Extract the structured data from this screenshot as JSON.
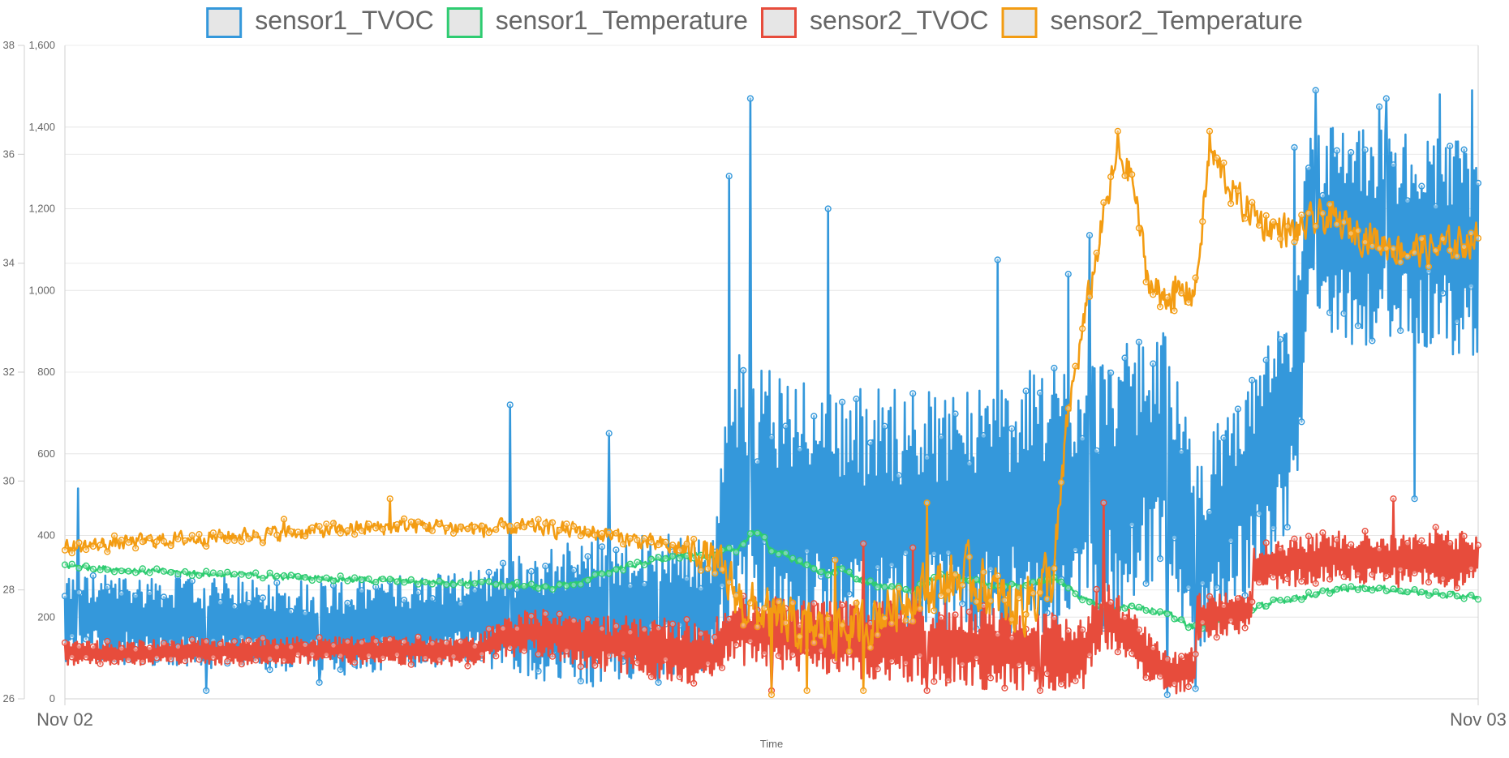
{
  "chart_data": {
    "type": "line",
    "x_axis": {
      "title": "Time",
      "tick_labels": [
        "Nov 02",
        "Nov 03"
      ]
    },
    "y_axes": {
      "left_outer": {
        "ticks": [
          26,
          28,
          30,
          32,
          34,
          36,
          38
        ],
        "range": [
          26,
          38
        ]
      },
      "left_inner": {
        "ticks": [
          "0",
          "200",
          "400",
          "600",
          "800",
          "1,000",
          "1,200",
          "1,400",
          "1,600"
        ],
        "range": [
          0,
          1600
        ]
      }
    },
    "grid": true,
    "legend_position": "top",
    "series": [
      {
        "name": "sensor1_TVOC",
        "axis": "left_inner",
        "color": "#3498db",
        "profile": [
          [
            0,
            200
          ],
          [
            0.2,
            175
          ],
          [
            0.29,
            200
          ],
          [
            0.37,
            210
          ],
          [
            0.43,
            230
          ],
          [
            0.46,
            220
          ],
          [
            0.47,
            500
          ],
          [
            0.55,
            430
          ],
          [
            0.64,
            450
          ],
          [
            0.72,
            480
          ],
          [
            0.78,
            610
          ],
          [
            0.8,
            330
          ],
          [
            0.87,
            700
          ],
          [
            0.88,
            1150
          ],
          [
            1,
            1100
          ]
        ],
        "noise": [
          [
            0,
            90
          ],
          [
            0.29,
            100
          ],
          [
            0.37,
            160
          ],
          [
            0.46,
            140
          ],
          [
            0.47,
            300
          ],
          [
            0.64,
            260
          ],
          [
            0.72,
            300
          ],
          [
            0.8,
            220
          ],
          [
            0.87,
            220
          ],
          [
            0.88,
            230
          ],
          [
            1,
            220
          ]
        ],
        "peaks": [
          [
            0.009,
            515
          ],
          [
            0.315,
            720
          ],
          [
            0.385,
            650
          ],
          [
            0.47,
            1280
          ],
          [
            0.485,
            1470
          ],
          [
            0.54,
            1200
          ],
          [
            0.66,
            1075
          ],
          [
            0.71,
            1040
          ],
          [
            0.725,
            1135
          ],
          [
            0.8,
            410
          ],
          [
            0.87,
            1350
          ],
          [
            0.885,
            1490
          ],
          [
            0.93,
            1450
          ],
          [
            0.935,
            1470
          ],
          [
            0.955,
            1520
          ],
          [
            0.973,
            1480
          ],
          [
            0.996,
            1490
          ]
        ],
        "troughs": [
          [
            0.1,
            20
          ],
          [
            0.18,
            40
          ],
          [
            0.42,
            40
          ],
          [
            0.78,
            10
          ],
          [
            0.8,
            25
          ],
          [
            0.955,
            730
          ],
          [
            0.955,
            490
          ]
        ]
      },
      {
        "name": "sensor1_Temperature",
        "axis": "left_outer",
        "color": "#2ecc71",
        "profile": [
          [
            0,
            28.45
          ],
          [
            0.05,
            28.35
          ],
          [
            0.1,
            28.3
          ],
          [
            0.15,
            28.25
          ],
          [
            0.2,
            28.2
          ],
          [
            0.25,
            28.15
          ],
          [
            0.3,
            28.12
          ],
          [
            0.34,
            28.05
          ],
          [
            0.36,
            28.1
          ],
          [
            0.38,
            28.3
          ],
          [
            0.4,
            28.45
          ],
          [
            0.43,
            28.6
          ],
          [
            0.46,
            28.65
          ],
          [
            0.475,
            28.75
          ],
          [
            0.49,
            29.1
          ],
          [
            0.5,
            28.75
          ],
          [
            0.52,
            28.5
          ],
          [
            0.54,
            28.3
          ],
          [
            0.55,
            28.4
          ],
          [
            0.56,
            28.2
          ],
          [
            0.58,
            28.05
          ],
          [
            0.6,
            28.0
          ],
          [
            0.62,
            28.25
          ],
          [
            0.64,
            28.2
          ],
          [
            0.66,
            28.05
          ],
          [
            0.68,
            28.1
          ],
          [
            0.7,
            28.2
          ],
          [
            0.71,
            28.05
          ],
          [
            0.72,
            27.85
          ],
          [
            0.74,
            27.65
          ],
          [
            0.76,
            27.7
          ],
          [
            0.78,
            27.55
          ],
          [
            0.8,
            27.3
          ],
          [
            0.82,
            27.5
          ],
          [
            0.84,
            27.65
          ],
          [
            0.86,
            27.8
          ],
          [
            0.88,
            27.9
          ],
          [
            0.9,
            28.0
          ],
          [
            0.92,
            28.05
          ],
          [
            0.94,
            28.0
          ],
          [
            0.96,
            27.95
          ],
          [
            0.98,
            27.9
          ],
          [
            1,
            27.85
          ]
        ],
        "noise": [
          [
            0,
            0.08
          ],
          [
            1,
            0.08
          ]
        ],
        "peaks": [],
        "troughs": []
      },
      {
        "name": "sensor2_TVOC",
        "axis": "left_inner",
        "color": "#e74c3c",
        "profile": [
          [
            0,
            110
          ],
          [
            0.2,
            120
          ],
          [
            0.29,
            115
          ],
          [
            0.31,
            150
          ],
          [
            0.33,
            165
          ],
          [
            0.37,
            140
          ],
          [
            0.46,
            110
          ],
          [
            0.47,
            170
          ],
          [
            0.54,
            150
          ],
          [
            0.64,
            130
          ],
          [
            0.72,
            110
          ],
          [
            0.73,
            180
          ],
          [
            0.74,
            200
          ],
          [
            0.76,
            130
          ],
          [
            0.78,
            60
          ],
          [
            0.8,
            70
          ],
          [
            0.8,
            200
          ],
          [
            0.84,
            220
          ],
          [
            0.84,
            320
          ],
          [
            0.9,
            350
          ],
          [
            0.95,
            340
          ],
          [
            1,
            340
          ]
        ],
        "noise": [
          [
            0,
            25
          ],
          [
            0.29,
            30
          ],
          [
            0.33,
            50
          ],
          [
            0.47,
            70
          ],
          [
            0.64,
            90
          ],
          [
            0.72,
            80
          ],
          [
            0.78,
            45
          ],
          [
            0.84,
            50
          ],
          [
            1,
            60
          ]
        ],
        "peaks": [
          [
            0.565,
            380
          ],
          [
            0.6,
            370
          ],
          [
            0.735,
            480
          ],
          [
            0.94,
            490
          ],
          [
            0.97,
            420
          ]
        ],
        "troughs": [
          [
            0.5,
            20
          ],
          [
            0.61,
            20
          ],
          [
            0.69,
            20
          ]
        ]
      },
      {
        "name": "sensor2_Temperature",
        "axis": "left_inner",
        "color": "#f39c12",
        "profile": [
          [
            0,
            370
          ],
          [
            0.05,
            385
          ],
          [
            0.1,
            395
          ],
          [
            0.15,
            405
          ],
          [
            0.2,
            415
          ],
          [
            0.25,
            425
          ],
          [
            0.3,
            415
          ],
          [
            0.33,
            420
          ],
          [
            0.37,
            410
          ],
          [
            0.4,
            390
          ],
          [
            0.43,
            370
          ],
          [
            0.45,
            360
          ],
          [
            0.46,
            330
          ],
          [
            0.48,
            230
          ],
          [
            0.52,
            170
          ],
          [
            0.56,
            170
          ],
          [
            0.6,
            260
          ],
          [
            0.64,
            300
          ],
          [
            0.67,
            220
          ],
          [
            0.7,
            300
          ],
          [
            0.71,
            700
          ],
          [
            0.72,
            900
          ],
          [
            0.735,
            1180
          ],
          [
            0.745,
            1330
          ],
          [
            0.755,
            1280
          ],
          [
            0.765,
            1050
          ],
          [
            0.77,
            1000
          ],
          [
            0.785,
            990
          ],
          [
            0.8,
            1000
          ],
          [
            0.81,
            1340
          ],
          [
            0.83,
            1220
          ],
          [
            0.85,
            1160
          ],
          [
            0.87,
            1140
          ],
          [
            0.89,
            1180
          ],
          [
            0.91,
            1150
          ],
          [
            0.93,
            1120
          ],
          [
            0.95,
            1100
          ],
          [
            0.97,
            1100
          ],
          [
            1,
            1130
          ]
        ],
        "noise": [
          [
            0,
            25
          ],
          [
            0.43,
            30
          ],
          [
            0.47,
            90
          ],
          [
            0.62,
            90
          ],
          [
            0.7,
            120
          ],
          [
            0.71,
            60
          ],
          [
            1,
            60
          ]
        ],
        "peaks": [
          [
            0.155,
            440
          ],
          [
            0.23,
            490
          ],
          [
            0.545,
            340
          ],
          [
            0.61,
            480
          ],
          [
            0.745,
            1390
          ],
          [
            0.81,
            1390
          ]
        ],
        "troughs": [
          [
            0.5,
            10
          ],
          [
            0.525,
            20
          ],
          [
            0.565,
            20
          ],
          [
            0.775,
            960
          ],
          [
            0.785,
            950
          ]
        ]
      }
    ]
  }
}
